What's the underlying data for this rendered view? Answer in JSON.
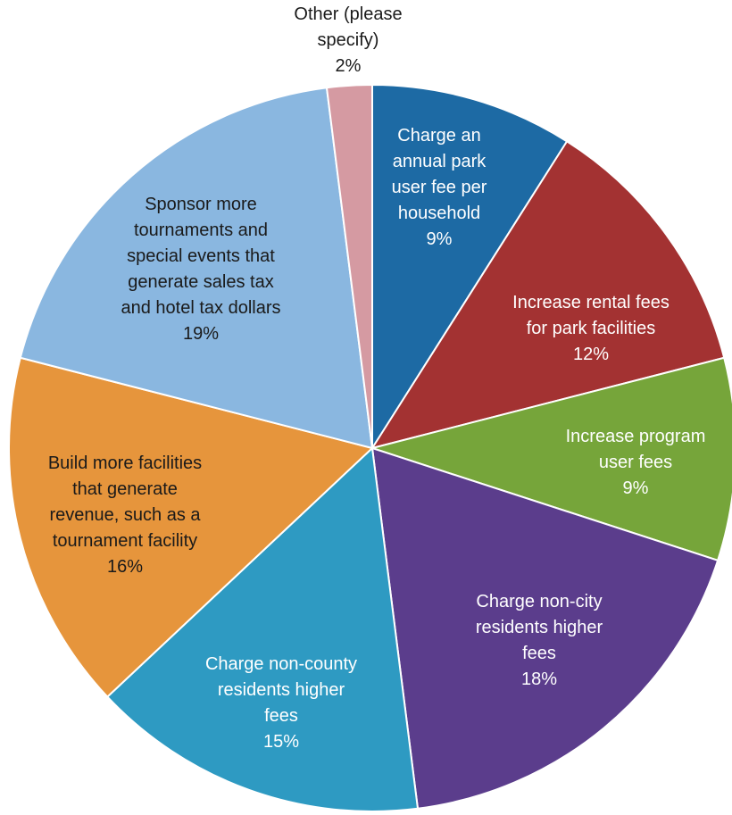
{
  "chart_data": {
    "type": "pie",
    "slices": [
      {
        "label": "Charge an annual park user fee per household",
        "pct": "9%",
        "value": 9,
        "color": "#1d6aa4",
        "text_color": "#ffffff"
      },
      {
        "label": "Increase rental fees for park facilities",
        "pct": "12%",
        "value": 12,
        "color": "#a33232",
        "text_color": "#ffffff"
      },
      {
        "label": "Increase program user fees",
        "pct": "9%",
        "value": 9,
        "color": "#76a53a",
        "text_color": "#ffffff"
      },
      {
        "label": "Charge non-city residents higher fees",
        "pct": "18%",
        "value": 18,
        "color": "#5b3d8c",
        "text_color": "#ffffff"
      },
      {
        "label": "Charge non-county residents higher fees",
        "pct": "15%",
        "value": 15,
        "color": "#2e9ac2",
        "text_color": "#ffffff"
      },
      {
        "label": "Build more facilities that generate revenue, such as a tournament facility",
        "pct": "16%",
        "value": 16,
        "color": "#e6953c",
        "text_color": "#1a1a1a"
      },
      {
        "label": "Sponsor more tournaments and special events that generate sales tax and hotel tax dollars",
        "pct": "19%",
        "value": 19,
        "color": "#8ab7e0",
        "text_color": "#1a1a1a"
      },
      {
        "label": "Other (please specify)",
        "pct": "2%",
        "value": 2,
        "color": "#d59aa2",
        "text_color": "#1a1a1a"
      }
    ]
  }
}
